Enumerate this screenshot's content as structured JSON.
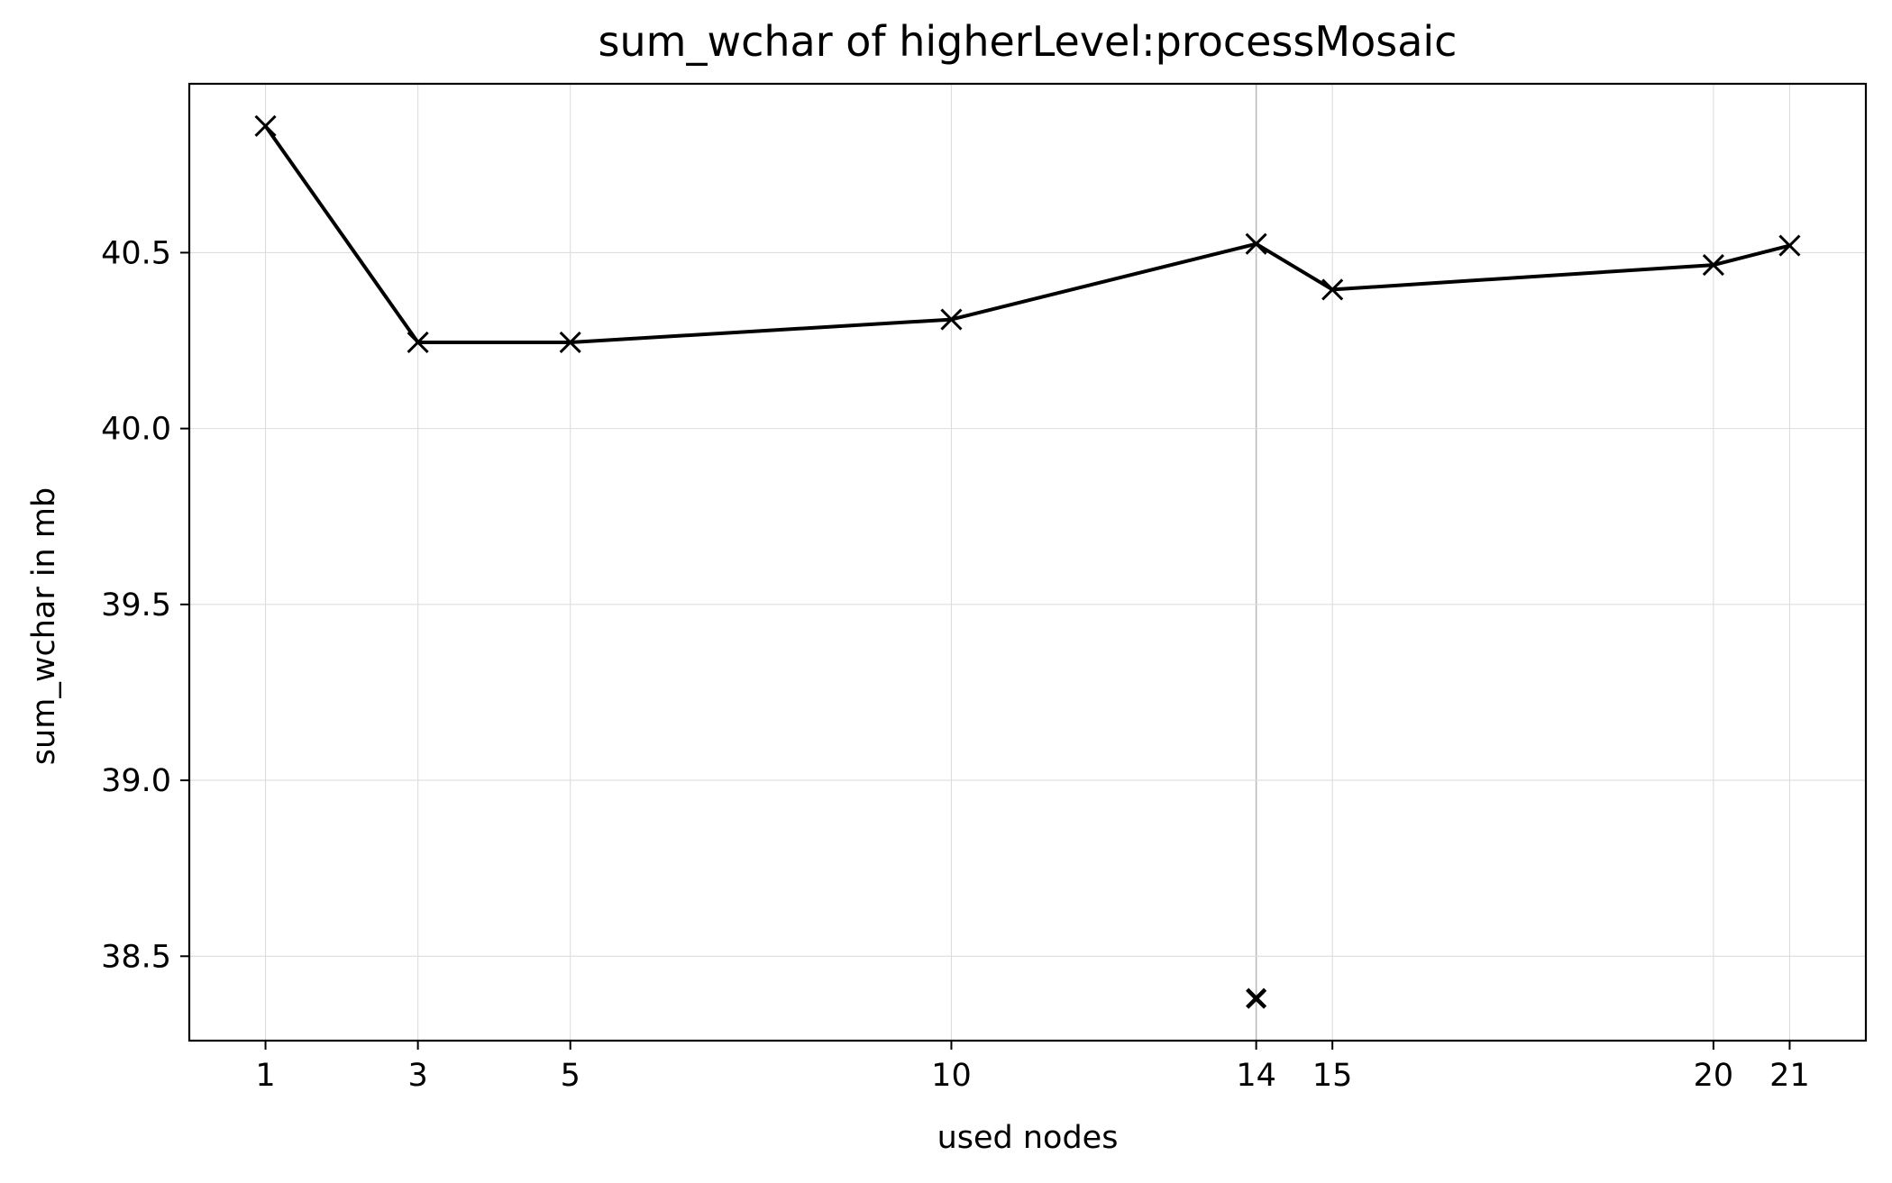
{
  "chart_data": {
    "type": "line",
    "title": "sum_wchar of higherLevel:processMosaic",
    "xlabel": "used nodes",
    "ylabel": "sum_wchar in mb",
    "xlim": [
      0,
      22
    ],
    "ylim": [
      38.26,
      40.98
    ],
    "x_ticks": [
      1,
      3,
      5,
      10,
      14,
      15,
      20,
      21
    ],
    "y_ticks": [
      38.5,
      39.0,
      39.5,
      40.0,
      40.5
    ],
    "grid": true,
    "legend": "none",
    "colors": {
      "line": "#000000",
      "marker": "#000000",
      "grid": "#dddddd",
      "highlight_grid": "#bbbbbb",
      "frame": "#000000"
    },
    "series": [
      {
        "marker": "x",
        "line": true,
        "x": [
          1,
          3,
          5,
          10,
          14,
          15,
          20,
          21
        ],
        "y": [
          40.86,
          40.245,
          40.245,
          40.31,
          40.525,
          40.395,
          40.465,
          40.52
        ]
      },
      {
        "marker": "x",
        "line": false,
        "x": [
          14
        ],
        "y": [
          38.38
        ]
      }
    ],
    "highlighted_x": 14
  }
}
